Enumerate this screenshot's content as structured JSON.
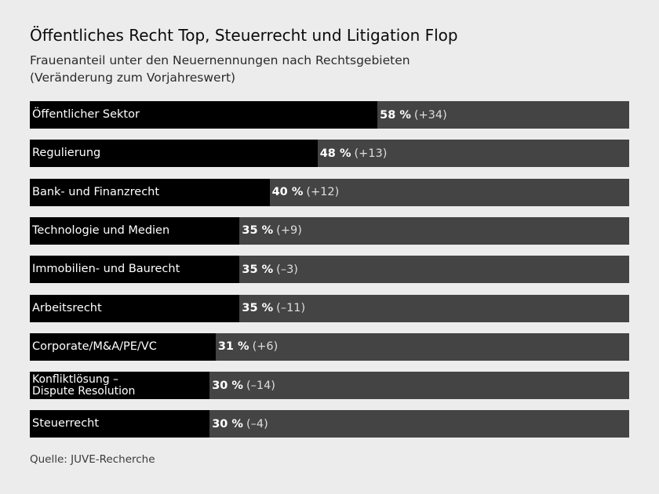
{
  "title": "Öffentliches Recht Top, Steuerrecht und Litigation Flop",
  "subtitle_line1": "Frauenanteil unter den Neuernennungen nach Rechtsgebieten",
  "subtitle_line2": "(Veränderung zum Vorjahreswert)",
  "source": "Quelle: JUVE-Recherche",
  "colors": {
    "background": "#ececec",
    "bar_fill": "#000000",
    "bar_track": "#444444",
    "text_on_bar": "#ffffff"
  },
  "chart_data": {
    "type": "bar",
    "orientation": "horizontal",
    "xlim": [
      0,
      100
    ],
    "categories": [
      "Öffentlicher Sektor",
      "Regulierung",
      "Bank- und Finanzrecht",
      "Technologie und Medien",
      "Immobilien- und Baurecht",
      "Arbeitsrecht",
      "Corporate/M&A/PE/VC",
      "Konfliktlösung – Dispute Resolution",
      "Steuerrecht"
    ],
    "values": [
      58,
      48,
      40,
      35,
      35,
      35,
      31,
      30,
      30
    ],
    "value_labels": [
      "58 %",
      "48 %",
      "40 %",
      "35 %",
      "35 %",
      "35 %",
      "31 %",
      "30 %",
      "30 %"
    ],
    "change": [
      34,
      13,
      12,
      9,
      -3,
      -11,
      6,
      -14,
      -4
    ],
    "change_labels": [
      "(+34)",
      "(+13)",
      "(+12)",
      "(+9)",
      "(–3)",
      "(–11)",
      "(+6)",
      "(–14)",
      "(–4)"
    ]
  }
}
